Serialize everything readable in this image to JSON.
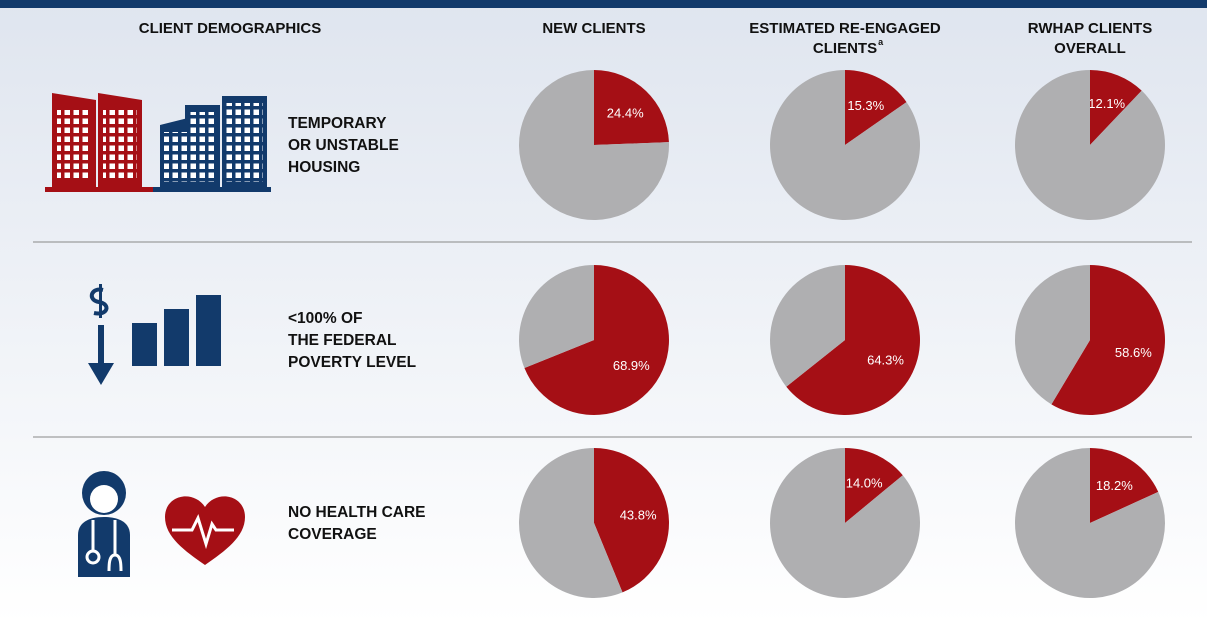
{
  "header": {
    "columns": [
      [
        "CLIENT DEMOGRAPHICS"
      ],
      [
        "NEW CLIENTS"
      ],
      [
        "ESTIMATED RE-ENGAGED",
        "CLIENTS"
      ],
      [
        "RWHAP CLIENTS",
        "OVERALL"
      ]
    ],
    "footnote_mark": "a"
  },
  "rows": [
    {
      "label": [
        "TEMPORARY",
        "OR UNSTABLE",
        "HOUSING"
      ]
    },
    {
      "label": [
        "<100% OF",
        "THE FEDERAL",
        "POVERTY LEVEL"
      ]
    },
    {
      "label": [
        "NO HEALTH CARE",
        "COVERAGE"
      ]
    }
  ],
  "chart_data": [
    {
      "type": "pie",
      "values": [
        24.4,
        75.6
      ],
      "value_labels": [
        "24.4%",
        null
      ],
      "colors": [
        "#a50f15",
        "#afafb1"
      ]
    },
    {
      "type": "pie",
      "values": [
        15.3,
        84.7
      ],
      "value_labels": [
        "15.3%",
        null
      ],
      "colors": [
        "#a50f15",
        "#afafb1"
      ]
    },
    {
      "type": "pie",
      "values": [
        12.1,
        87.9
      ],
      "value_labels": [
        "12.1%",
        null
      ],
      "colors": [
        "#a50f15",
        "#afafb1"
      ]
    },
    {
      "type": "pie",
      "values": [
        68.9,
        31.1
      ],
      "value_labels": [
        "68.9%",
        null
      ],
      "colors": [
        "#a50f15",
        "#afafb1"
      ]
    },
    {
      "type": "pie",
      "values": [
        64.3,
        35.7
      ],
      "value_labels": [
        "64.3%",
        null
      ],
      "colors": [
        "#a50f15",
        "#afafb1"
      ]
    },
    {
      "type": "pie",
      "values": [
        58.6,
        41.4
      ],
      "value_labels": [
        "58.6%",
        null
      ],
      "colors": [
        "#a50f15",
        "#afafb1"
      ]
    },
    {
      "type": "pie",
      "values": [
        43.8,
        56.2
      ],
      "value_labels": [
        "43.8%",
        null
      ],
      "colors": [
        "#a50f15",
        "#afafb1"
      ]
    },
    {
      "type": "pie",
      "values": [
        14.0,
        86.0
      ],
      "value_labels": [
        "14.0%",
        null
      ],
      "colors": [
        "#a50f15",
        "#afafb1"
      ]
    },
    {
      "type": "pie",
      "values": [
        18.2,
        81.8
      ],
      "value_labels": [
        "18.2%",
        null
      ],
      "colors": [
        "#a50f15",
        "#afafb1"
      ]
    }
  ]
}
